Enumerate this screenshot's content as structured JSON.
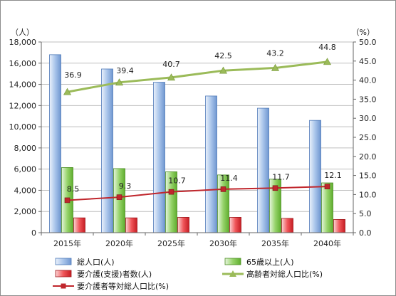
{
  "chart_data": {
    "type": "bar",
    "categories": [
      "2015年",
      "2020年",
      "2025年",
      "2030年",
      "2035年",
      "2040年"
    ],
    "left_axis": {
      "unit_label": "（人）",
      "ylim": [
        0,
        18000
      ],
      "step": 2000,
      "tick_labels": [
        "0",
        "2,000",
        "4,000",
        "6,000",
        "8,000",
        "10,000",
        "12,000",
        "14,000",
        "16,000",
        "18,000"
      ]
    },
    "right_axis": {
      "unit_label": "（%）",
      "ylim": [
        0,
        50
      ],
      "step": 5,
      "tick_labels": [
        "0.0",
        "5.0",
        "10.0",
        "15.0",
        "20.0",
        "25.0",
        "30.0",
        "35.0",
        "40.0",
        "45.0",
        "50.0"
      ]
    },
    "grid": true,
    "legend_position": "bottom",
    "series": [
      {
        "name": "総人口(人)",
        "kind": "bar",
        "axis": "left",
        "color": "#7aa3da",
        "values": [
          16800,
          15450,
          14200,
          12900,
          11750,
          10600
        ]
      },
      {
        "name": "65歳以上(人)",
        "kind": "bar",
        "axis": "left",
        "color": "#7cc24a",
        "values": [
          6150,
          6050,
          5750,
          5450,
          5050,
          4700
        ]
      },
      {
        "name": "要介護(支援)者数(人)",
        "kind": "bar",
        "axis": "left",
        "color": "#e8262b",
        "values": [
          1400,
          1400,
          1450,
          1450,
          1350,
          1250
        ]
      },
      {
        "name": "高齢者対総人口比(%)",
        "kind": "line",
        "axis": "right",
        "color": "#9bbb59",
        "marker": "triangle",
        "values": [
          36.9,
          39.4,
          40.7,
          42.5,
          43.2,
          44.8
        ],
        "labels": [
          "36.9",
          "39.4",
          "40.7",
          "42.5",
          "43.2",
          "44.8"
        ]
      },
      {
        "name": "要介護者等対総人口比(%)",
        "kind": "line",
        "axis": "right",
        "color": "#c0262c",
        "marker": "square",
        "values": [
          8.5,
          9.3,
          10.7,
          11.4,
          11.7,
          12.1
        ],
        "labels": [
          "8.5",
          "9.3",
          "10.7",
          "11.4",
          "11.7",
          "12.1"
        ]
      }
    ]
  }
}
